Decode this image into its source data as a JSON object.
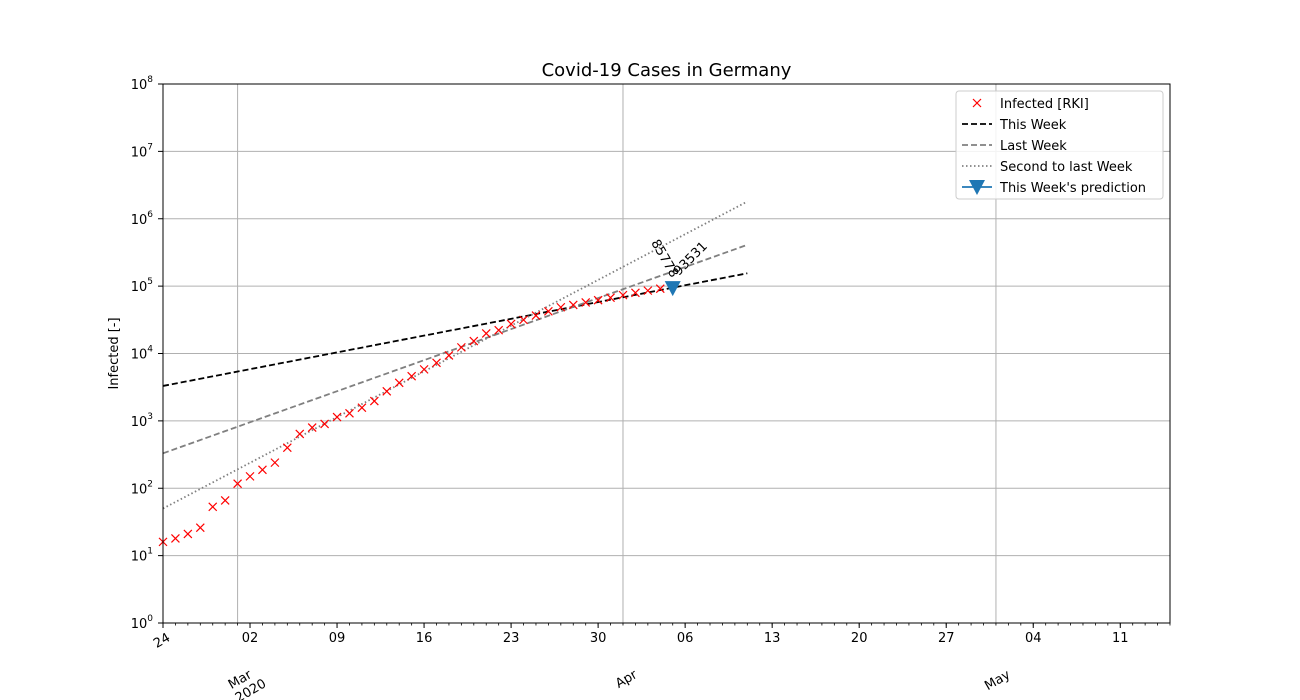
{
  "chart_data": {
    "type": "scatter",
    "title": "Covid-19 Cases in Germany",
    "xlabel": "",
    "ylabel": "Infected [-]",
    "yscale": "log",
    "ylim": [
      1,
      100000000
    ],
    "xlim": [
      "2020-02-24",
      "2020-05-15"
    ],
    "grid": true,
    "legend_position": "top-right",
    "x_ticks_major": [
      {
        "date": "2020-02-24",
        "label": "24"
      },
      {
        "date": "2020-03-02",
        "label": "02"
      },
      {
        "date": "2020-03-09",
        "label": "09"
      },
      {
        "date": "2020-03-16",
        "label": "16"
      },
      {
        "date": "2020-03-23",
        "label": "23"
      },
      {
        "date": "2020-03-30",
        "label": "30"
      },
      {
        "date": "2020-04-06",
        "label": "06"
      },
      {
        "date": "2020-04-13",
        "label": "13"
      },
      {
        "date": "2020-04-20",
        "label": "20"
      },
      {
        "date": "2020-04-27",
        "label": "27"
      },
      {
        "date": "2020-05-04",
        "label": "04"
      },
      {
        "date": "2020-05-11",
        "label": "11"
      }
    ],
    "x_month_labels": [
      {
        "date": "2020-03-01",
        "label": "Mar\n2020"
      },
      {
        "date": "2020-04-01",
        "label": "Apr"
      },
      {
        "date": "2020-05-01",
        "label": "May"
      }
    ],
    "x_major_gridlines": [
      "2020-03-01",
      "2020-04-01",
      "2020-05-01"
    ],
    "y_ticks": [
      {
        "value": 1,
        "base": "10",
        "exp": "0"
      },
      {
        "value": 10,
        "base": "10",
        "exp": "1"
      },
      {
        "value": 100,
        "base": "10",
        "exp": "2"
      },
      {
        "value": 1000,
        "base": "10",
        "exp": "3"
      },
      {
        "value": 10000,
        "base": "10",
        "exp": "4"
      },
      {
        "value": 100000,
        "base": "10",
        "exp": "5"
      },
      {
        "value": 1000000,
        "base": "10",
        "exp": "6"
      },
      {
        "value": 10000000,
        "base": "10",
        "exp": "7"
      },
      {
        "value": 100000000,
        "base": "10",
        "exp": "8"
      }
    ],
    "series": [
      {
        "name": "Infected [RKI]",
        "style": "x-marker",
        "color": "#ff0000",
        "x": [
          "2020-02-24",
          "2020-02-25",
          "2020-02-26",
          "2020-02-27",
          "2020-02-28",
          "2020-02-29",
          "2020-03-01",
          "2020-03-02",
          "2020-03-03",
          "2020-03-04",
          "2020-03-05",
          "2020-03-06",
          "2020-03-07",
          "2020-03-08",
          "2020-03-09",
          "2020-03-10",
          "2020-03-11",
          "2020-03-12",
          "2020-03-13",
          "2020-03-14",
          "2020-03-15",
          "2020-03-16",
          "2020-03-17",
          "2020-03-18",
          "2020-03-19",
          "2020-03-20",
          "2020-03-21",
          "2020-03-22",
          "2020-03-23",
          "2020-03-24",
          "2020-03-25",
          "2020-03-26",
          "2020-03-27",
          "2020-03-28",
          "2020-03-29",
          "2020-03-30",
          "2020-03-31",
          "2020-04-01",
          "2020-04-02",
          "2020-04-03",
          "2020-04-04"
        ],
        "values": [
          16,
          18,
          21,
          26,
          53,
          66,
          117,
          150,
          188,
          240,
          400,
          639,
          795,
          902,
          1139,
          1296,
          1567,
          1966,
          2745,
          3675,
          4599,
          5813,
          7272,
          9367,
          12327,
          15320,
          19848,
          22213,
          27436,
          31554,
          36508,
          42288,
          48582,
          52547,
          57298,
          61913,
          67366,
          73522,
          79696,
          85778,
          91714
        ]
      },
      {
        "name": "This Week",
        "style": "dashed",
        "color": "#000000",
        "x": [
          "2020-02-24",
          "2020-04-11"
        ],
        "values": [
          3300,
          155000
        ]
      },
      {
        "name": "Last Week",
        "style": "dashed",
        "color": "#808080",
        "x": [
          "2020-02-24",
          "2020-04-11"
        ],
        "values": [
          330,
          410000
        ]
      },
      {
        "name": "Second to last Week",
        "style": "dotted",
        "color": "#808080",
        "x": [
          "2020-02-24",
          "2020-04-11"
        ],
        "values": [
          50,
          1800000
        ]
      },
      {
        "name": "This Week's prediction",
        "style": "triangle-marker",
        "color": "#1f77b4",
        "x": [
          "2020-04-05"
        ],
        "values": [
          93531
        ]
      }
    ],
    "annotations": [
      {
        "text": "85778",
        "x": "2020-04-03",
        "y": 85778,
        "rotation": 60
      },
      {
        "text": "93531",
        "x": "2020-04-05",
        "y": 93531,
        "rotation": -45
      }
    ]
  }
}
